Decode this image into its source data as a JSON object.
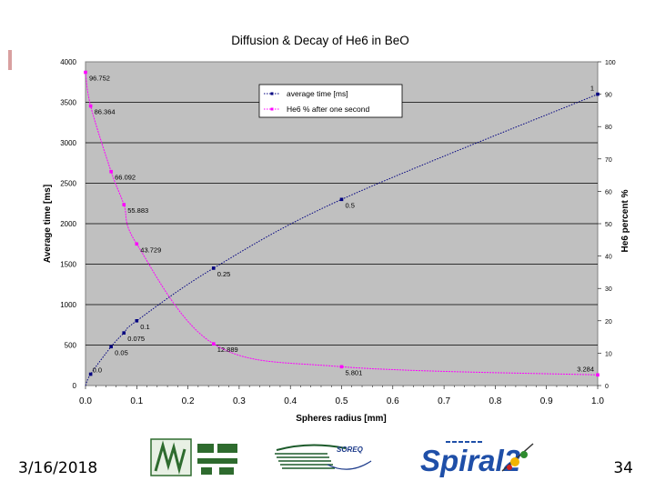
{
  "footer": {
    "date": "3/16/2018",
    "page": "34"
  },
  "logos": {
    "soreq_text": "SOREQ",
    "spiral_text": "Spiral2"
  },
  "colors": {
    "plot_bg": "#c0c0c0",
    "series1": "#000080",
    "series2": "#ff00ff",
    "grid": "#000000"
  },
  "chart_data": {
    "type": "line",
    "title": "Diffusion & Decay of He6 in BeO",
    "xlabel": "Spheres radius [mm]",
    "ylabel": "Average time [ms]",
    "y2label": "He6 percent %",
    "xlim": [
      0,
      1
    ],
    "ylim": [
      0,
      4000
    ],
    "y2lim": [
      0,
      100
    ],
    "xticks": [
      "0.0",
      "0.1",
      "0.2",
      "0.3",
      "0.4",
      "0.5",
      "0.6",
      "0.7",
      "0.8",
      "0.9",
      "1.0"
    ],
    "yticks": [
      "0",
      "500",
      "1000",
      "1500",
      "2000",
      "2500",
      "3000",
      "3500",
      "4000"
    ],
    "y2ticks": [
      "0",
      "10",
      "20",
      "30",
      "40",
      "50",
      "60",
      "70",
      "80",
      "90",
      "100"
    ],
    "grid": "horizontal",
    "legend_position": "top-right",
    "series": [
      {
        "name": "average time [ms]",
        "axis": "left",
        "color": "#000080",
        "points": [
          {
            "x": 0.01,
            "y": 140,
            "label": "0.0"
          },
          {
            "x": 0.05,
            "y": 480,
            "label": "0.05"
          },
          {
            "x": 0.075,
            "y": 650,
            "label": "0.075"
          },
          {
            "x": 0.1,
            "y": 800,
            "label": "0.1"
          },
          {
            "x": 0.25,
            "y": 1450,
            "label": "0.25"
          },
          {
            "x": 0.5,
            "y": 2300,
            "label": "0.5"
          },
          {
            "x": 1.0,
            "y": 3600,
            "label": "1"
          }
        ]
      },
      {
        "name": "He6 % after one second",
        "axis": "right",
        "color": "#ff00ff",
        "points": [
          {
            "x": 0.0,
            "y": 96.752,
            "label": "96.752"
          },
          {
            "x": 0.01,
            "y": 86.364,
            "label": "86.364"
          },
          {
            "x": 0.05,
            "y": 66.092,
            "label": "66.092"
          },
          {
            "x": 0.075,
            "y": 55.883,
            "label": "55.883"
          },
          {
            "x": 0.1,
            "y": 43.729,
            "label": "43.729"
          },
          {
            "x": 0.25,
            "y": 12.889,
            "label": "12.889"
          },
          {
            "x": 0.5,
            "y": 5.801,
            "label": "5.801"
          },
          {
            "x": 1.0,
            "y": 3.284,
            "label": "3.284"
          }
        ]
      }
    ]
  }
}
